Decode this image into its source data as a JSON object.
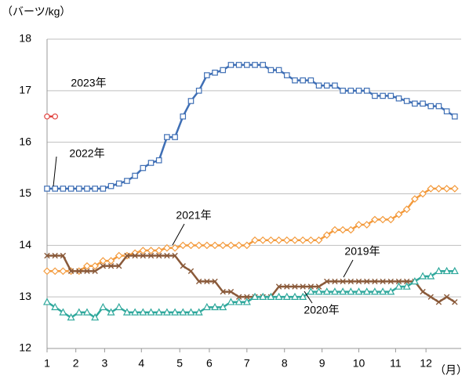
{
  "chart_data": {
    "type": "line",
    "y_label": "（バーツ/kg）",
    "x_label": "（月）",
    "x": [
      1,
      2,
      3,
      4,
      5,
      6,
      7,
      8,
      9,
      10,
      11,
      12,
      13,
      14,
      15,
      16,
      17,
      18,
      19,
      20,
      21,
      22,
      23,
      24,
      25,
      26,
      27,
      28,
      29,
      30,
      31,
      32,
      33,
      34,
      35,
      36,
      37,
      38,
      39,
      40,
      41,
      42,
      43,
      44,
      45,
      46,
      47,
      48,
      49,
      50,
      51,
      52
    ],
    "xlim": [
      1,
      52.8
    ],
    "xticks": [
      {
        "value": 1,
        "label": "1"
      },
      {
        "value": 4.6,
        "label": "2"
      },
      {
        "value": 8.2,
        "label": "3"
      },
      {
        "value": 12.8,
        "label": "4"
      },
      {
        "value": 17.6,
        "label": "5"
      },
      {
        "value": 21.3,
        "label": "6"
      },
      {
        "value": 26,
        "label": "7"
      },
      {
        "value": 30.7,
        "label": "8"
      },
      {
        "value": 35.4,
        "label": "9"
      },
      {
        "value": 40,
        "label": "10"
      },
      {
        "value": 44.6,
        "label": "11"
      },
      {
        "value": 48.4,
        "label": "12"
      }
    ],
    "ylim": [
      12,
      18
    ],
    "yticks": [
      12,
      13,
      14,
      15,
      16,
      17,
      18
    ],
    "grid": true,
    "series": [
      {
        "name": "2023年",
        "color": "#e0403c",
        "marker": "circle",
        "x": [
          1,
          2
        ],
        "values": [
          16.5,
          16.5
        ]
      },
      {
        "name": "2022年",
        "color": "#3f6fb5",
        "marker": "square",
        "values": [
          15.1,
          15.1,
          15.1,
          15.1,
          15.1,
          15.1,
          15.1,
          15.1,
          15.15,
          15.2,
          15.25,
          15.35,
          15.5,
          15.6,
          15.65,
          16.1,
          16.1,
          16.5,
          16.8,
          17.0,
          17.3,
          17.35,
          17.4,
          17.5,
          17.5,
          17.5,
          17.5,
          17.5,
          17.4,
          17.4,
          17.3,
          17.2,
          17.2,
          17.2,
          17.1,
          17.1,
          17.1,
          17.0,
          17.0,
          17.0,
          17.0,
          16.9,
          16.9,
          16.9,
          16.85,
          16.8,
          16.75,
          16.75,
          16.7,
          16.7,
          16.6,
          16.5
        ]
      },
      {
        "name": "2021年",
        "color": "#f39a3c",
        "marker": "diamond",
        "values": [
          13.5,
          13.5,
          13.5,
          13.5,
          13.5,
          13.6,
          13.6,
          13.7,
          13.7,
          13.8,
          13.8,
          13.85,
          13.9,
          13.9,
          13.9,
          13.95,
          13.95,
          14.0,
          14.0,
          14.0,
          14.0,
          14.0,
          14.0,
          14.0,
          14.0,
          14.0,
          14.1,
          14.1,
          14.1,
          14.1,
          14.1,
          14.1,
          14.1,
          14.1,
          14.1,
          14.2,
          14.3,
          14.3,
          14.3,
          14.4,
          14.4,
          14.5,
          14.5,
          14.5,
          14.6,
          14.7,
          14.9,
          15.0,
          15.1,
          15.1,
          15.1,
          15.1
        ]
      },
      {
        "name": "2019年",
        "color": "#8a5a3a",
        "marker": "cross",
        "values": [
          13.8,
          13.8,
          13.8,
          13.5,
          13.5,
          13.5,
          13.5,
          13.6,
          13.6,
          13.6,
          13.8,
          13.8,
          13.8,
          13.8,
          13.8,
          13.8,
          13.8,
          13.6,
          13.5,
          13.3,
          13.3,
          13.3,
          13.1,
          13.1,
          13.0,
          13.0,
          13.0,
          13.0,
          13.0,
          13.2,
          13.2,
          13.2,
          13.2,
          13.2,
          13.2,
          13.3,
          13.3,
          13.3,
          13.3,
          13.3,
          13.3,
          13.3,
          13.3,
          13.3,
          13.3,
          13.3,
          13.3,
          13.1,
          13.0,
          12.9,
          13.0,
          12.9
        ]
      },
      {
        "name": "2020年",
        "color": "#2fa89c",
        "marker": "triangle",
        "values": [
          12.9,
          12.8,
          12.7,
          12.6,
          12.7,
          12.7,
          12.6,
          12.8,
          12.7,
          12.8,
          12.7,
          12.7,
          12.7,
          12.7,
          12.7,
          12.7,
          12.7,
          12.7,
          12.7,
          12.7,
          12.8,
          12.8,
          12.8,
          12.9,
          12.9,
          12.9,
          13.0,
          13.0,
          13.0,
          13.0,
          13.0,
          13.0,
          13.0,
          13.1,
          13.1,
          13.1,
          13.1,
          13.1,
          13.1,
          13.1,
          13.1,
          13.1,
          13.1,
          13.1,
          13.2,
          13.2,
          13.3,
          13.4,
          13.4,
          13.5,
          13.5,
          13.5
        ]
      }
    ]
  }
}
